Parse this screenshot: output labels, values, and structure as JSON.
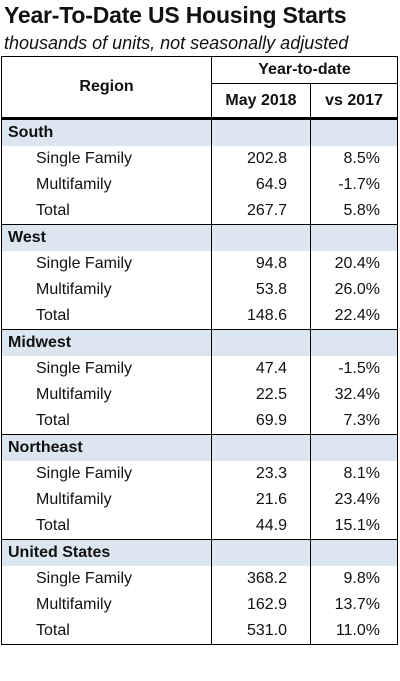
{
  "title": "Year-To-Date US Housing Starts",
  "subtitle": "thousands of units, not seasonally adjusted",
  "header": {
    "region": "Region",
    "group": "Year-to-date",
    "col1": "May 2018",
    "col2": "vs 2017"
  },
  "chart_data": {
    "type": "table",
    "title": "Year-To-Date US Housing Starts",
    "subtitle": "thousands of units, not seasonally adjusted",
    "columns": [
      "Region",
      "May 2018",
      "vs 2017"
    ],
    "regions": [
      {
        "name": "South",
        "rows": [
          {
            "label": "Single Family",
            "value": "202.8",
            "change": "8.5%"
          },
          {
            "label": "Multifamily",
            "value": "64.9",
            "change": "-1.7%"
          },
          {
            "label": "Total",
            "value": "267.7",
            "change": "5.8%"
          }
        ]
      },
      {
        "name": "West",
        "rows": [
          {
            "label": "Single Family",
            "value": "94.8",
            "change": "20.4%"
          },
          {
            "label": "Multifamily",
            "value": "53.8",
            "change": "26.0%"
          },
          {
            "label": "Total",
            "value": "148.6",
            "change": "22.4%"
          }
        ]
      },
      {
        "name": "Midwest",
        "rows": [
          {
            "label": "Single Family",
            "value": "47.4",
            "change": "-1.5%"
          },
          {
            "label": "Multifamily",
            "value": "22.5",
            "change": "32.4%"
          },
          {
            "label": "Total",
            "value": "69.9",
            "change": "7.3%"
          }
        ]
      },
      {
        "name": "Northeast",
        "rows": [
          {
            "label": "Single Family",
            "value": "23.3",
            "change": "8.1%"
          },
          {
            "label": "Multifamily",
            "value": "21.6",
            "change": "23.4%"
          },
          {
            "label": "Total",
            "value": "44.9",
            "change": "15.1%"
          }
        ]
      },
      {
        "name": "United States",
        "rows": [
          {
            "label": "Single Family",
            "value": "368.2",
            "change": "9.8%"
          },
          {
            "label": "Multifamily",
            "value": "162.9",
            "change": "13.7%"
          },
          {
            "label": "Total",
            "value": "531.0",
            "change": "11.0%"
          }
        ]
      }
    ]
  }
}
